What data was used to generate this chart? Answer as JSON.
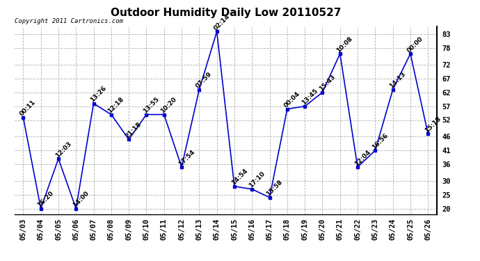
{
  "title": "Outdoor Humidity Daily Low 20110527",
  "copyright": "Copyright 2011 Cartronics.com",
  "dates": [
    "05/03",
    "05/04",
    "05/05",
    "05/06",
    "05/07",
    "05/08",
    "05/09",
    "05/10",
    "05/11",
    "05/12",
    "05/13",
    "05/14",
    "05/15",
    "05/16",
    "05/17",
    "05/18",
    "05/19",
    "05/20",
    "05/21",
    "05/22",
    "05/23",
    "05/24",
    "05/25",
    "05/26"
  ],
  "values": [
    53,
    20,
    38,
    20,
    58,
    54,
    45,
    54,
    54,
    35,
    63,
    84,
    28,
    27,
    24,
    56,
    57,
    62,
    76,
    35,
    41,
    63,
    76,
    47
  ],
  "times": [
    "00:11",
    "16:20",
    "12:03",
    "14:00",
    "13:26",
    "12:18",
    "21:18",
    "13:55",
    "10:20",
    "17:54",
    "07:59",
    "02:14",
    "14:54",
    "17:10",
    "15:58",
    "00:04",
    "13:45",
    "15:43",
    "10:08",
    "12:04",
    "16:56",
    "14:13",
    "00:00",
    "15:18"
  ],
  "line_color": "#0000cc",
  "marker_color": "#0000cc",
  "background_color": "#ffffff",
  "grid_color": "#b0b0b0",
  "title_fontsize": 11,
  "label_fontsize": 6.5,
  "copyright_fontsize": 6.5,
  "tick_fontsize": 7.5,
  "ylim": [
    18,
    86
  ],
  "yticks": [
    20,
    25,
    30,
    36,
    41,
    46,
    52,
    57,
    62,
    67,
    72,
    78,
    83
  ]
}
